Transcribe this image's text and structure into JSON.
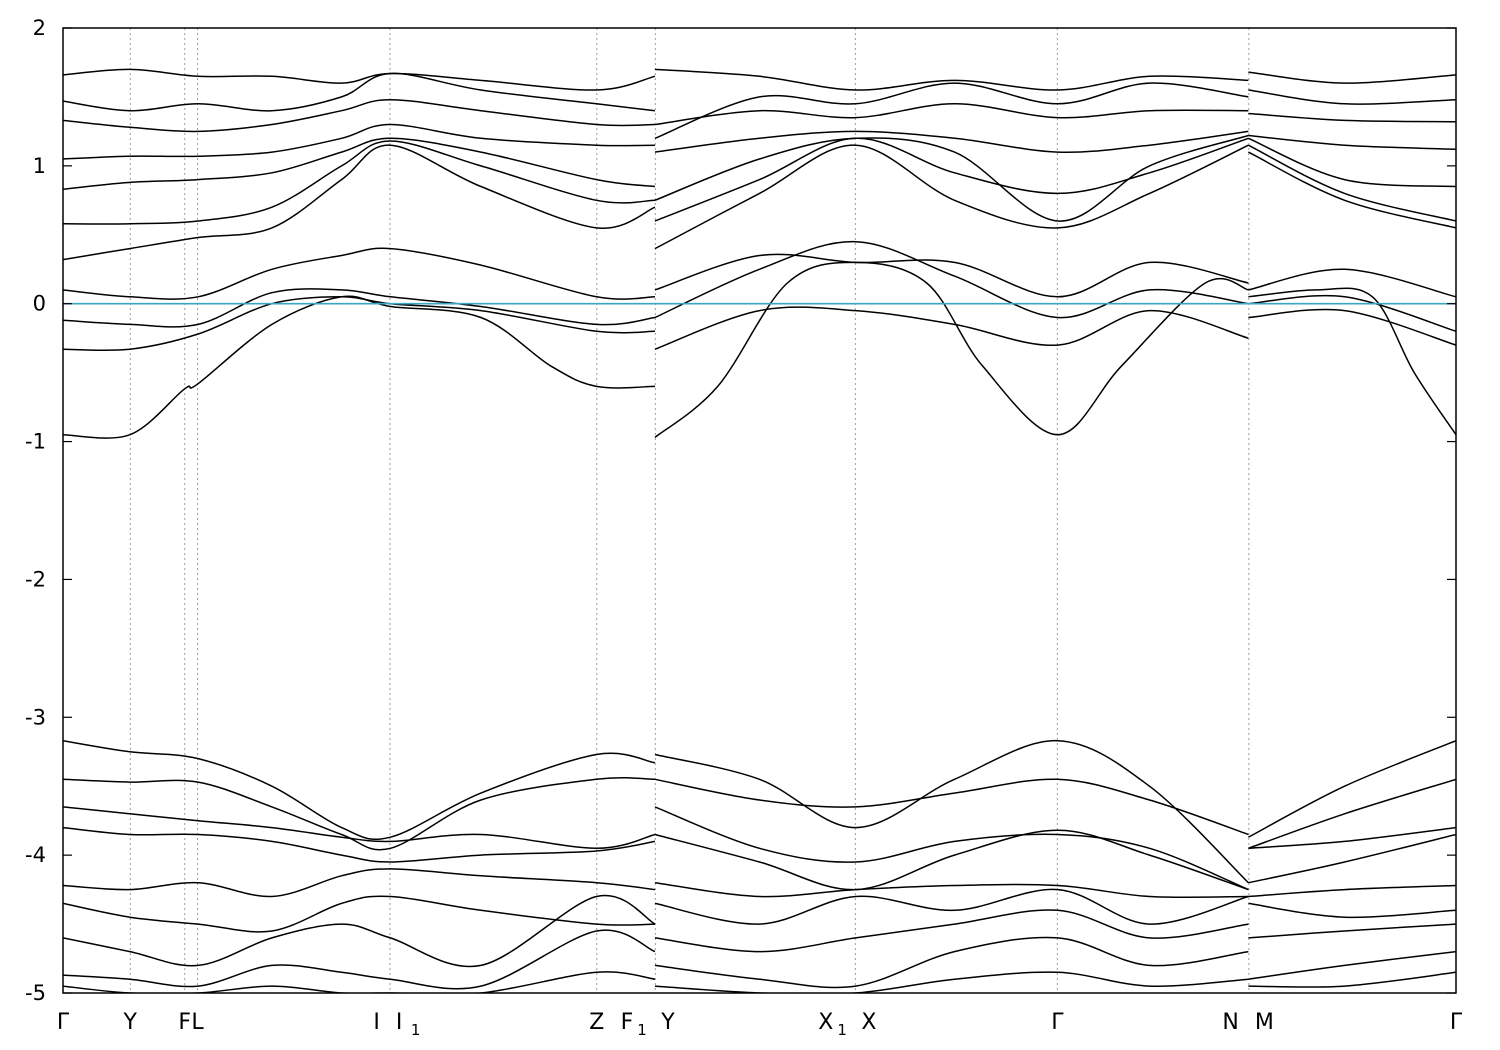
{
  "chart_data": {
    "type": "line",
    "title": "",
    "xlabel": "",
    "ylabel": "",
    "ylim": [
      -5,
      2
    ],
    "y_ticks": [
      "2",
      "1",
      "0",
      "-1",
      "-2",
      "-3",
      "-4",
      "-5"
    ],
    "x_range": [
      0,
      1
    ],
    "grid": "vertical dashed lines at high-symmetry points",
    "legend": "none",
    "fermi_level": {
      "y": 0,
      "color": "#3aa6c0"
    },
    "band_color": "#000000",
    "high_symmetry_points": [
      {
        "label": "Γ",
        "sub": "",
        "x": 0.0
      },
      {
        "label": "Y",
        "sub": "",
        "x": 0.0483
      },
      {
        "label": "F",
        "sub": "",
        "x": 0.0874
      },
      {
        "label": "L",
        "sub": "",
        "x": 0.0966
      },
      {
        "label": "I",
        "sub": "",
        "x": 0.2347
      },
      {
        "label": "I",
        "sub": "1",
        "x": 0.2347
      },
      {
        "label": "Z",
        "sub": "",
        "x": 0.3832
      },
      {
        "label": "F",
        "sub": "1",
        "x": 0.4252
      },
      {
        "label": "Y",
        "sub": "",
        "x": 0.4252
      },
      {
        "label": "X",
        "sub": "1",
        "x": 0.5688
      },
      {
        "label": "X",
        "sub": "",
        "x": 0.5688
      },
      {
        "label": "Γ",
        "sub": "",
        "x": 0.7138
      },
      {
        "label": "N",
        "sub": "",
        "x": 0.8513
      },
      {
        "label": "M",
        "sub": "",
        "x": 0.8513
      },
      {
        "label": "Γ",
        "sub": "",
        "x": 1.0
      }
    ],
    "segments": [
      {
        "from": "Γ",
        "to": "Y",
        "x": [
          0.0,
          0.0483
        ]
      },
      {
        "from": "Y",
        "to": "F",
        "x": [
          0.0483,
          0.0874
        ]
      },
      {
        "from": "L",
        "to": "I",
        "x": [
          0.0966,
          0.2347
        ]
      },
      {
        "from": "I1",
        "to": "Z",
        "x": [
          0.2347,
          0.3832
        ]
      },
      {
        "from": "Z",
        "to": "F1",
        "x": [
          0.3832,
          0.4252
        ]
      },
      {
        "from": "Y",
        "to": "X1",
        "x": [
          0.4252,
          0.5688
        ]
      },
      {
        "from": "X",
        "to": "Γ",
        "x": [
          0.5688,
          0.7138
        ]
      },
      {
        "from": "Γ",
        "to": "N",
        "x": [
          0.7138,
          0.8513
        ]
      },
      {
        "from": "M",
        "to": "Γ",
        "x": [
          0.8513,
          1.0
        ]
      }
    ],
    "series": [
      {
        "x": [
          0,
          0.048,
          0.087,
          0.097,
          0.15,
          0.2,
          0.235,
          0.3,
          0.35,
          0.383,
          0.425
        ],
        "values": [
          -0.95,
          -0.95,
          -0.62,
          -0.58,
          -0.15,
          0.05,
          -0.02,
          -0.1,
          -0.45,
          -0.6,
          -0.6
        ]
      },
      {
        "x": [
          0.425,
          0.47,
          0.52,
          0.569,
          0.62,
          0.66,
          0.714,
          0.76,
          0.82,
          0.851
        ],
        "values": [
          -0.97,
          -0.6,
          0.15,
          0.3,
          0.15,
          -0.45,
          -0.95,
          -0.45,
          0.15,
          0.1
        ]
      },
      {
        "x": [
          0.851,
          0.9,
          0.94,
          0.97,
          1.0
        ],
        "values": [
          0.05,
          0.1,
          0.05,
          -0.5,
          -0.95
        ]
      },
      {
        "x": [
          0,
          0.048,
          0.097,
          0.15,
          0.2,
          0.235,
          0.3,
          0.383,
          0.425
        ],
        "values": [
          -0.33,
          -0.33,
          -0.22,
          0.0,
          0.05,
          0.0,
          -0.05,
          -0.2,
          -0.2
        ]
      },
      {
        "x": [
          0.425,
          0.5,
          0.569,
          0.64,
          0.714,
          0.78,
          0.851
        ],
        "values": [
          -0.33,
          -0.05,
          -0.05,
          -0.15,
          -0.3,
          -0.05,
          -0.25
        ]
      },
      {
        "x": [
          0.851,
          0.92,
          1.0
        ],
        "values": [
          -0.1,
          -0.05,
          -0.3
        ]
      },
      {
        "x": [
          0,
          0.048,
          0.097,
          0.15,
          0.2,
          0.235,
          0.3,
          0.383,
          0.425
        ],
        "values": [
          -0.12,
          -0.15,
          -0.15,
          0.08,
          0.1,
          0.05,
          -0.02,
          -0.15,
          -0.1
        ]
      },
      {
        "x": [
          0.425,
          0.5,
          0.569,
          0.64,
          0.714,
          0.78,
          0.851
        ],
        "values": [
          -0.1,
          0.25,
          0.45,
          0.2,
          -0.1,
          0.1,
          0.0
        ]
      },
      {
        "x": [
          0.851,
          0.92,
          1.0
        ],
        "values": [
          0.0,
          0.05,
          -0.2
        ]
      },
      {
        "x": [
          0,
          0.048,
          0.097,
          0.15,
          0.2,
          0.235,
          0.3,
          0.383,
          0.425
        ],
        "values": [
          0.1,
          0.05,
          0.05,
          0.25,
          0.35,
          0.4,
          0.28,
          0.05,
          0.05
        ]
      },
      {
        "x": [
          0.425,
          0.5,
          0.569,
          0.64,
          0.714,
          0.78,
          0.851
        ],
        "values": [
          0.1,
          0.35,
          0.3,
          0.3,
          0.05,
          0.3,
          0.15
        ]
      },
      {
        "x": [
          0.851,
          0.92,
          1.0
        ],
        "values": [
          0.1,
          0.25,
          0.05
        ]
      },
      {
        "x": [
          0,
          0.048,
          0.097,
          0.15,
          0.2,
          0.235,
          0.3,
          0.383,
          0.425
        ],
        "values": [
          0.32,
          0.4,
          0.48,
          0.55,
          0.9,
          1.15,
          0.85,
          0.55,
          0.7
        ]
      },
      {
        "x": [
          0.425,
          0.5,
          0.569,
          0.64,
          0.714,
          0.78,
          0.851
        ],
        "values": [
          0.4,
          0.8,
          1.15,
          0.75,
          0.55,
          0.8,
          1.15
        ]
      },
      {
        "x": [
          0.851,
          0.92,
          1.0
        ],
        "values": [
          1.1,
          0.75,
          0.55
        ]
      },
      {
        "x": [
          0,
          0.048,
          0.097,
          0.15,
          0.2,
          0.235,
          0.3,
          0.383,
          0.425
        ],
        "values": [
          0.58,
          0.58,
          0.6,
          0.7,
          1.0,
          1.18,
          1.0,
          0.75,
          0.75
        ]
      },
      {
        "x": [
          0.425,
          0.5,
          0.569,
          0.64,
          0.714,
          0.78,
          0.851
        ],
        "values": [
          0.6,
          0.9,
          1.2,
          0.95,
          0.8,
          0.95,
          1.2
        ]
      },
      {
        "x": [
          0.851,
          0.92,
          1.0
        ],
        "values": [
          1.15,
          0.8,
          0.6
        ]
      },
      {
        "x": [
          0,
          0.048,
          0.097,
          0.15,
          0.2,
          0.235,
          0.3,
          0.383,
          0.425
        ],
        "values": [
          0.83,
          0.88,
          0.9,
          0.95,
          1.1,
          1.2,
          1.1,
          0.9,
          0.85
        ]
      },
      {
        "x": [
          0.425,
          0.5,
          0.569,
          0.64,
          0.714,
          0.78,
          0.851
        ],
        "values": [
          0.75,
          1.05,
          1.2,
          1.1,
          0.6,
          1.0,
          1.22
        ]
      },
      {
        "x": [
          0.851,
          0.92,
          1.0
        ],
        "values": [
          1.2,
          0.9,
          0.85
        ]
      },
      {
        "x": [
          0,
          0.048,
          0.097,
          0.15,
          0.2,
          0.235,
          0.3,
          0.383,
          0.425
        ],
        "values": [
          1.05,
          1.07,
          1.07,
          1.1,
          1.2,
          1.3,
          1.2,
          1.15,
          1.15
        ]
      },
      {
        "x": [
          0.425,
          0.5,
          0.569,
          0.64,
          0.714,
          0.78,
          0.851
        ],
        "values": [
          1.1,
          1.2,
          1.25,
          1.2,
          1.1,
          1.15,
          1.25
        ]
      },
      {
        "x": [
          0.851,
          0.92,
          1.0
        ],
        "values": [
          1.22,
          1.15,
          1.12
        ]
      },
      {
        "x": [
          0,
          0.048,
          0.097,
          0.15,
          0.2,
          0.235,
          0.3,
          0.383,
          0.425
        ],
        "values": [
          1.33,
          1.28,
          1.25,
          1.3,
          1.4,
          1.48,
          1.4,
          1.3,
          1.3
        ]
      },
      {
        "x": [
          0.425,
          0.5,
          0.569,
          0.64,
          0.714,
          0.78,
          0.851
        ],
        "values": [
          1.3,
          1.4,
          1.35,
          1.45,
          1.35,
          1.4,
          1.4
        ]
      },
      {
        "x": [
          0.851,
          0.92,
          1.0
        ],
        "values": [
          1.38,
          1.33,
          1.32
        ]
      },
      {
        "x": [
          0,
          0.048,
          0.097,
          0.15,
          0.2,
          0.235,
          0.3,
          0.383,
          0.425
        ],
        "values": [
          1.47,
          1.4,
          1.45,
          1.4,
          1.5,
          1.67,
          1.55,
          1.45,
          1.4
        ]
      },
      {
        "x": [
          0.425,
          0.5,
          0.569,
          0.64,
          0.714,
          0.78,
          0.851
        ],
        "values": [
          1.2,
          1.5,
          1.45,
          1.6,
          1.45,
          1.6,
          1.5
        ]
      },
      {
        "x": [
          0.851,
          0.92,
          1.0
        ],
        "values": [
          1.55,
          1.45,
          1.48
        ]
      },
      {
        "x": [
          0,
          0.048,
          0.097,
          0.15,
          0.2,
          0.235,
          0.3,
          0.383,
          0.425
        ],
        "values": [
          1.66,
          1.7,
          1.65,
          1.65,
          1.6,
          1.67,
          1.62,
          1.55,
          1.65
        ]
      },
      {
        "x": [
          0.425,
          0.5,
          0.569,
          0.64,
          0.714,
          0.78,
          0.851
        ],
        "values": [
          1.7,
          1.65,
          1.55,
          1.62,
          1.55,
          1.65,
          1.62
        ]
      },
      {
        "x": [
          0.851,
          0.92,
          1.0
        ],
        "values": [
          1.68,
          1.6,
          1.66
        ]
      },
      {
        "x": [
          0,
          0.048,
          0.097,
          0.15,
          0.2,
          0.235,
          0.3,
          0.383,
          0.425
        ],
        "values": [
          -3.17,
          -3.25,
          -3.3,
          -3.5,
          -3.8,
          -3.87,
          -3.55,
          -3.27,
          -3.33
        ]
      },
      {
        "x": [
          0.425,
          0.5,
          0.569,
          0.64,
          0.714,
          0.78,
          0.851
        ],
        "values": [
          -3.27,
          -3.45,
          -3.8,
          -3.45,
          -3.17,
          -3.5,
          -4.2
        ]
      },
      {
        "x": [
          0.851,
          0.92,
          1.0
        ],
        "values": [
          -3.87,
          -3.5,
          -3.17
        ]
      },
      {
        "x": [
          0,
          0.048,
          0.097,
          0.15,
          0.2,
          0.235,
          0.3,
          0.383,
          0.425
        ],
        "values": [
          -3.45,
          -3.47,
          -3.47,
          -3.65,
          -3.85,
          -3.95,
          -3.6,
          -3.45,
          -3.45
        ]
      },
      {
        "x": [
          0.425,
          0.5,
          0.569,
          0.64,
          0.714,
          0.78,
          0.851
        ],
        "values": [
          -3.45,
          -3.6,
          -3.65,
          -3.55,
          -3.45,
          -3.6,
          -3.85
        ]
      },
      {
        "x": [
          0.851,
          0.92,
          1.0
        ],
        "values": [
          -3.95,
          -3.7,
          -3.45
        ]
      },
      {
        "x": [
          0,
          0.048,
          0.097,
          0.15,
          0.2,
          0.235,
          0.3,
          0.383,
          0.425
        ],
        "values": [
          -3.65,
          -3.7,
          -3.75,
          -3.8,
          -3.87,
          -3.9,
          -3.85,
          -3.95,
          -3.85
        ]
      },
      {
        "x": [
          0.425,
          0.5,
          0.569,
          0.64,
          0.714,
          0.78,
          0.851
        ],
        "values": [
          -3.65,
          -3.95,
          -4.05,
          -3.9,
          -3.85,
          -3.95,
          -4.25
        ]
      },
      {
        "x": [
          0.851,
          0.92,
          1.0
        ],
        "values": [
          -3.95,
          -3.9,
          -3.8
        ]
      },
      {
        "x": [
          0,
          0.048,
          0.097,
          0.15,
          0.2,
          0.235,
          0.3,
          0.383,
          0.425
        ],
        "values": [
          -3.8,
          -3.85,
          -3.85,
          -3.9,
          -4.0,
          -4.05,
          -4.0,
          -3.97,
          -3.9
        ]
      },
      {
        "x": [
          0.425,
          0.5,
          0.569,
          0.64,
          0.714,
          0.78,
          0.851
        ],
        "values": [
          -3.85,
          -4.05,
          -4.25,
          -4.0,
          -3.82,
          -4.0,
          -4.25
        ]
      },
      {
        "x": [
          0.851,
          0.92,
          1.0
        ],
        "values": [
          -4.2,
          -4.05,
          -3.85
        ]
      },
      {
        "x": [
          0,
          0.048,
          0.097,
          0.15,
          0.2,
          0.235,
          0.3,
          0.383,
          0.425
        ],
        "values": [
          -4.22,
          -4.25,
          -4.2,
          -4.3,
          -4.15,
          -4.1,
          -4.15,
          -4.2,
          -4.25
        ]
      },
      {
        "x": [
          0.425,
          0.5,
          0.569,
          0.64,
          0.714,
          0.78,
          0.851
        ],
        "values": [
          -4.2,
          -4.3,
          -4.25,
          -4.22,
          -4.22,
          -4.3,
          -4.3
        ]
      },
      {
        "x": [
          0.851,
          0.92,
          1.0
        ],
        "values": [
          -4.3,
          -4.25,
          -4.22
        ]
      },
      {
        "x": [
          0,
          0.048,
          0.097,
          0.15,
          0.2,
          0.235,
          0.3,
          0.383,
          0.425
        ],
        "values": [
          -4.35,
          -4.45,
          -4.5,
          -4.55,
          -4.35,
          -4.3,
          -4.4,
          -4.5,
          -4.5
        ]
      },
      {
        "x": [
          0.425,
          0.5,
          0.569,
          0.64,
          0.714,
          0.78,
          0.851
        ],
        "values": [
          -4.35,
          -4.5,
          -4.3,
          -4.4,
          -4.25,
          -4.5,
          -4.3
        ]
      },
      {
        "x": [
          0.851,
          0.92,
          1.0
        ],
        "values": [
          -4.35,
          -4.45,
          -4.4
        ]
      },
      {
        "x": [
          0,
          0.048,
          0.097,
          0.15,
          0.2,
          0.235,
          0.3,
          0.383,
          0.425
        ],
        "values": [
          -4.6,
          -4.7,
          -4.8,
          -4.6,
          -4.5,
          -4.6,
          -4.8,
          -4.3,
          -4.5
        ]
      },
      {
        "x": [
          0.425,
          0.5,
          0.569,
          0.64,
          0.714,
          0.78,
          0.851
        ],
        "values": [
          -4.6,
          -4.7,
          -4.6,
          -4.5,
          -4.4,
          -4.6,
          -4.5
        ]
      },
      {
        "x": [
          0.851,
          0.92,
          1.0
        ],
        "values": [
          -4.6,
          -4.55,
          -4.5
        ]
      },
      {
        "x": [
          0,
          0.048,
          0.097,
          0.15,
          0.2,
          0.235,
          0.3,
          0.383,
          0.425
        ],
        "values": [
          -4.87,
          -4.9,
          -4.95,
          -4.8,
          -4.85,
          -4.9,
          -4.95,
          -4.55,
          -4.7
        ]
      },
      {
        "x": [
          0.425,
          0.5,
          0.569,
          0.64,
          0.714,
          0.78,
          0.851
        ],
        "values": [
          -4.8,
          -4.9,
          -4.95,
          -4.7,
          -4.6,
          -4.8,
          -4.7
        ]
      },
      {
        "x": [
          0.851,
          0.92,
          1.0
        ],
        "values": [
          -4.9,
          -4.8,
          -4.7
        ]
      },
      {
        "x": [
          0,
          0.048,
          0.097,
          0.15,
          0.2,
          0.235,
          0.3,
          0.383,
          0.425
        ],
        "values": [
          -4.95,
          -5.0,
          -5.0,
          -4.95,
          -5.0,
          -5.0,
          -5.0,
          -4.85,
          -4.9
        ]
      },
      {
        "x": [
          0.425,
          0.5,
          0.569,
          0.64,
          0.714,
          0.78,
          0.851
        ],
        "values": [
          -4.95,
          -5.0,
          -5.0,
          -4.9,
          -4.85,
          -4.95,
          -4.9
        ]
      },
      {
        "x": [
          0.851,
          0.92,
          1.0
        ],
        "values": [
          -4.95,
          -4.95,
          -4.85
        ]
      }
    ]
  }
}
